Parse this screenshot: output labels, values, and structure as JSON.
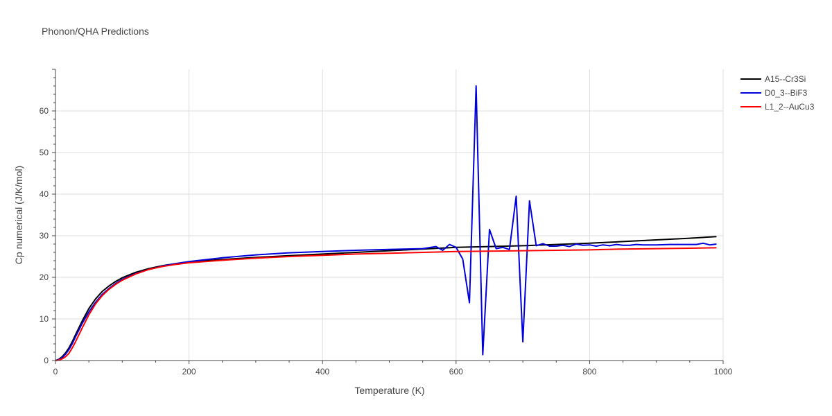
{
  "chart_data": {
    "type": "line",
    "title": "Phonon/QHA Predictions",
    "xlabel": "Temperature (K)",
    "ylabel": "Cp numerical (J/K/mol)",
    "xlim": [
      0,
      1000
    ],
    "ylim": [
      0,
      70
    ],
    "xticks": [
      0,
      200,
      400,
      600,
      800,
      1000
    ],
    "yticks": [
      0,
      10,
      20,
      30,
      40,
      50,
      60
    ],
    "grid": true,
    "legend_position": "top-right",
    "series": [
      {
        "name": "A15--Cr3Si",
        "color": "#000000",
        "x": [
          0,
          5,
          10,
          15,
          20,
          25,
          30,
          40,
          50,
          60,
          70,
          80,
          90,
          100,
          120,
          140,
          160,
          180,
          200,
          250,
          300,
          350,
          400,
          450,
          500,
          550,
          600,
          650,
          700,
          750,
          800,
          850,
          900,
          950,
          990
        ],
        "y": [
          0,
          0.3,
          0.9,
          1.8,
          3.0,
          4.5,
          6.2,
          9.5,
          12.5,
          14.8,
          16.6,
          17.9,
          19.0,
          19.9,
          21.2,
          22.1,
          22.8,
          23.3,
          23.7,
          24.3,
          24.8,
          25.2,
          25.6,
          26.0,
          26.4,
          26.8,
          27.2,
          27.4,
          27.6,
          27.9,
          28.2,
          28.6,
          29.0,
          29.4,
          29.8
        ]
      },
      {
        "name": "D0_3--BiF3",
        "color": "#0000dd",
        "x": [
          0,
          5,
          10,
          15,
          20,
          25,
          30,
          40,
          50,
          60,
          70,
          80,
          90,
          100,
          120,
          140,
          160,
          180,
          200,
          250,
          300,
          350,
          400,
          450,
          500,
          550,
          570,
          580,
          590,
          600,
          610,
          620,
          630,
          640,
          650,
          660,
          670,
          680,
          690,
          700,
          710,
          720,
          730,
          740,
          750,
          760,
          770,
          780,
          790,
          800,
          810,
          820,
          830,
          840,
          850,
          860,
          870,
          880,
          890,
          900,
          920,
          940,
          960,
          970,
          980,
          990
        ],
        "y": [
          0,
          0.2,
          0.7,
          1.5,
          2.6,
          4.0,
          5.7,
          8.9,
          11.7,
          14.0,
          15.9,
          17.3,
          18.5,
          19.5,
          20.9,
          21.9,
          22.7,
          23.3,
          23.8,
          24.7,
          25.4,
          25.9,
          26.2,
          26.5,
          26.7,
          26.9,
          27.4,
          26.5,
          27.9,
          27.2,
          24.4,
          13.9,
          66.0,
          1.4,
          31.5,
          26.9,
          27.2,
          26.7,
          39.5,
          4.5,
          38.4,
          27.6,
          28.1,
          27.5,
          27.5,
          27.7,
          27.4,
          28.0,
          27.7,
          27.8,
          27.5,
          27.8,
          27.6,
          27.9,
          27.7,
          27.7,
          27.9,
          27.8,
          27.8,
          27.8,
          27.9,
          27.9,
          27.9,
          28.2,
          27.8,
          28.0
        ]
      },
      {
        "name": "L1_2--AuCu3",
        "color": "#ff0000",
        "x": [
          0,
          5,
          10,
          15,
          20,
          25,
          30,
          40,
          50,
          60,
          70,
          80,
          90,
          100,
          120,
          140,
          160,
          180,
          200,
          250,
          300,
          350,
          400,
          450,
          500,
          550,
          600,
          650,
          700,
          750,
          800,
          850,
          900,
          950,
          990
        ],
        "y": [
          0,
          0.1,
          0.4,
          0.9,
          1.7,
          3.0,
          4.5,
          7.8,
          11.0,
          13.6,
          15.6,
          17.1,
          18.3,
          19.3,
          20.8,
          21.9,
          22.6,
          23.1,
          23.5,
          24.1,
          24.6,
          25.0,
          25.3,
          25.6,
          25.8,
          26.0,
          26.2,
          26.3,
          26.4,
          26.5,
          26.6,
          26.8,
          26.9,
          27.0,
          27.1
        ]
      }
    ]
  }
}
